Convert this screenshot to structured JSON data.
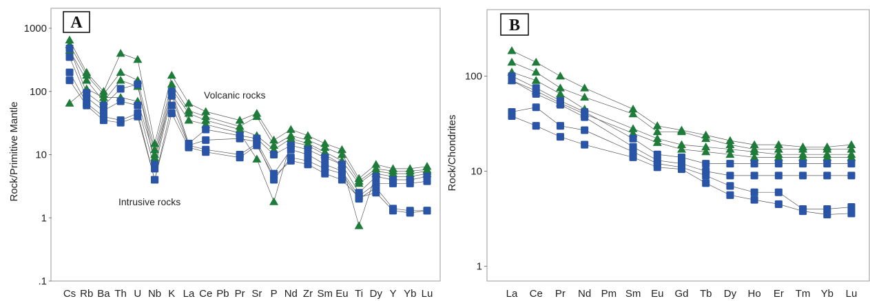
{
  "chart_data": [
    {
      "type": "line",
      "panel_label": "A",
      "ylabel": "Rock/Primitive Mantle",
      "yscale": "log",
      "ylim": [
        0.1,
        1000
      ],
      "yticks": [
        "1000",
        "100",
        "10",
        "1",
        ".1"
      ],
      "categories": [
        "Cs",
        "Rb",
        "Ba",
        "Th",
        "U",
        "Nb",
        "K",
        "La",
        "Ce",
        "Pb",
        "Pr",
        "Sr",
        "P",
        "Nd",
        "Zr",
        "Sm",
        "Eu",
        "Ti",
        "Dy",
        "Y",
        "Yb",
        "Lu"
      ],
      "annotations": [
        "Volcanic rocks",
        "Intrusive rocks"
      ],
      "series": [
        {
          "group": "volcanic",
          "marker": "triangle",
          "color": "#1e7b3a",
          "values": [
            650,
            200,
            100,
            400,
            320,
            15,
            180,
            65,
            48,
            null,
            35,
            45,
            17,
            25,
            20,
            15,
            12,
            4.2,
            7,
            6,
            6,
            6.5
          ]
        },
        {
          "group": "volcanic",
          "marker": "triangle",
          "color": "#1e7b3a",
          "values": [
            550,
            180,
            90,
            200,
            150,
            12,
            130,
            50,
            40,
            null,
            28,
            40,
            14,
            20,
            17,
            13,
            10,
            3.8,
            6,
            5.5,
            5.5,
            5.8
          ]
        },
        {
          "group": "volcanic",
          "marker": "triangle",
          "color": "#1e7b3a",
          "values": [
            450,
            150,
            70,
            150,
            120,
            10,
            110,
            45,
            35,
            null,
            25,
            20,
            12,
            18,
            15,
            11,
            8,
            3.5,
            5.5,
            5,
            5,
            5.5
          ]
        },
        {
          "group": "volcanic",
          "marker": "triangle",
          "color": "#1e7b3a",
          "values": [
            65,
            110,
            80,
            80,
            70,
            9,
            90,
            35,
            30,
            null,
            22,
            8.5,
            1.8,
            16,
            14,
            10,
            7,
            0.75,
            5,
            4.5,
            4.5,
            5
          ]
        },
        {
          "group": "intrusive",
          "marker": "square",
          "color": "#2a55a6",
          "values": [
            480,
            95,
            60,
            110,
            130,
            7,
            100,
            15,
            25,
            null,
            20,
            18,
            10,
            14,
            12,
            9,
            7,
            2.5,
            4.5,
            4,
            4,
            4.5
          ]
        },
        {
          "group": "intrusive",
          "marker": "square",
          "color": "#2a55a6",
          "values": [
            350,
            80,
            50,
            70,
            60,
            6,
            85,
            14,
            17,
            null,
            18,
            16,
            5,
            12,
            10,
            7,
            5.5,
            2.2,
            3.5,
            3.5,
            3.5,
            3.8
          ]
        },
        {
          "group": "intrusive",
          "marker": "square",
          "color": "#2a55a6",
          "values": [
            200,
            65,
            40,
            35,
            45,
            4,
            60,
            14,
            12,
            null,
            10,
            15,
            4,
            9,
            8,
            6,
            5,
            2,
            3,
            1.4,
            1.3,
            1.3
          ]
        },
        {
          "group": "intrusive",
          "marker": "square",
          "color": "#2a55a6",
          "values": [
            150,
            60,
            35,
            32,
            40,
            4,
            45,
            13,
            11,
            null,
            9,
            14,
            4.5,
            8,
            7,
            5,
            4,
            2.1,
            2.5,
            1.3,
            1.2,
            1.3
          ]
        }
      ]
    },
    {
      "type": "line",
      "panel_label": "B",
      "ylabel": "Rock/Chondrites",
      "yscale": "log",
      "ylim": [
        0.7,
        500
      ],
      "yticks": [
        "100",
        "10",
        "1"
      ],
      "categories": [
        "La",
        "Ce",
        "Pr",
        "Nd",
        "Pm",
        "Sm",
        "Eu",
        "Gd",
        "Tb",
        "Dy",
        "Ho",
        "Er",
        "Tm",
        "Yb",
        "Lu"
      ],
      "series": [
        {
          "group": "volcanic",
          "marker": "triangle",
          "color": "#1e7b3a",
          "values": [
            185,
            140,
            100,
            75,
            null,
            45,
            30,
            27,
            24,
            21,
            19,
            19,
            18,
            18,
            19
          ]
        },
        {
          "group": "volcanic",
          "marker": "triangle",
          "color": "#1e7b3a",
          "values": [
            140,
            110,
            75,
            60,
            null,
            40,
            26,
            26,
            22,
            19,
            17,
            17,
            17,
            17,
            17
          ]
        },
        {
          "group": "volcanic",
          "marker": "triangle",
          "color": "#1e7b3a",
          "values": [
            110,
            90,
            65,
            45,
            null,
            28,
            22,
            19,
            18,
            17,
            16,
            15,
            15,
            15,
            15
          ]
        },
        {
          "group": "volcanic",
          "marker": "triangle",
          "color": "#1e7b3a",
          "values": [
            90,
            70,
            52,
            40,
            null,
            25,
            20,
            17,
            16,
            15,
            14,
            14,
            14,
            14,
            14
          ]
        },
        {
          "group": "intrusive",
          "marker": "square",
          "color": "#2a55a6",
          "values": [
            100,
            75,
            55,
            42,
            null,
            22,
            15,
            14,
            12,
            12,
            12,
            12,
            12,
            12,
            12
          ]
        },
        {
          "group": "intrusive",
          "marker": "square",
          "color": "#2a55a6",
          "values": [
            90,
            65,
            50,
            37,
            null,
            18,
            13,
            12,
            10,
            9,
            9,
            9,
            9,
            9,
            9
          ]
        },
        {
          "group": "intrusive",
          "marker": "square",
          "color": "#2a55a6",
          "values": [
            42,
            47,
            30,
            27,
            null,
            16,
            12,
            11,
            9,
            7,
            6,
            6,
            4,
            4,
            4.2
          ]
        },
        {
          "group": "intrusive",
          "marker": "square",
          "color": "#2a55a6",
          "values": [
            38,
            30,
            23,
            19,
            null,
            14,
            11,
            10.5,
            7.5,
            5.6,
            5,
            4.5,
            3.8,
            3.5,
            3.6
          ]
        }
      ]
    }
  ]
}
